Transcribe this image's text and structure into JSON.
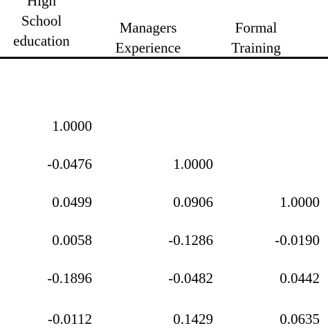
{
  "table": {
    "headers": [
      [
        "High",
        "School",
        "education"
      ],
      [
        "Managers",
        "Experience"
      ],
      [
        "Formal",
        "Training"
      ]
    ],
    "rows": [
      [
        "1.0000",
        "",
        ""
      ],
      [
        "-0.0476",
        "1.0000",
        ""
      ],
      [
        "0.0499",
        "0.0906",
        "1.0000"
      ],
      [
        "0.0058",
        "-0.1286",
        "-0.0190"
      ],
      [
        "-0.1896",
        "-0.0482",
        "0.0442"
      ],
      [
        "-0.0112",
        "0.1429",
        "0.0635"
      ]
    ]
  }
}
